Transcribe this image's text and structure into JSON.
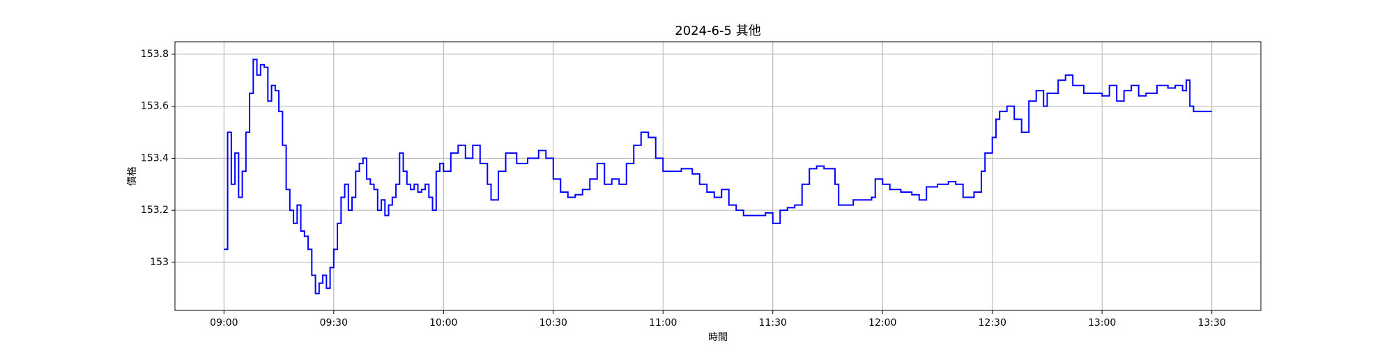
{
  "chart_data": {
    "type": "line",
    "title": "2024-6-5 其他",
    "x_label": "時間",
    "y_label": "價格",
    "x": [
      540,
      541,
      542,
      543,
      544,
      545,
      546,
      547,
      548,
      549,
      550,
      551,
      552,
      553,
      554,
      555,
      556,
      557,
      558,
      559,
      560,
      561,
      562,
      563,
      564,
      565,
      566,
      567,
      568,
      569,
      570,
      571,
      572,
      573,
      574,
      575,
      576,
      577,
      578,
      579,
      580,
      581,
      582,
      583,
      584,
      585,
      586,
      587,
      588,
      589,
      590,
      591,
      592,
      593,
      594,
      595,
      596,
      597,
      598,
      599,
      600,
      602,
      604,
      606,
      608,
      610,
      612,
      613,
      615,
      617,
      620,
      623,
      626,
      628,
      630,
      632,
      634,
      636,
      638,
      640,
      642,
      644,
      646,
      648,
      650,
      652,
      654,
      656,
      658,
      660,
      662,
      665,
      668,
      670,
      672,
      674,
      676,
      678,
      680,
      682,
      685,
      688,
      690,
      692,
      694,
      696,
      698,
      700,
      702,
      704,
      706,
      707,
      708,
      710,
      712,
      715,
      717,
      718,
      720,
      722,
      725,
      728,
      730,
      732,
      735,
      738,
      740,
      742,
      745,
      747,
      748,
      750,
      751,
      752,
      754,
      756,
      758,
      760,
      762,
      764,
      765,
      768,
      770,
      772,
      775,
      778,
      780,
      782,
      784,
      786,
      788,
      790,
      792,
      795,
      798,
      800,
      802,
      803,
      804,
      805,
      808,
      810
    ],
    "series": [
      {
        "name": "價格",
        "color": "#0000ff",
        "values": [
          153.05,
          153.5,
          153.3,
          153.42,
          153.25,
          153.35,
          153.5,
          153.65,
          153.78,
          153.72,
          153.76,
          153.75,
          153.62,
          153.68,
          153.66,
          153.58,
          153.45,
          153.28,
          153.2,
          153.15,
          153.22,
          153.12,
          153.1,
          153.05,
          152.95,
          152.88,
          152.92,
          152.95,
          152.9,
          152.98,
          153.05,
          153.15,
          153.25,
          153.3,
          153.2,
          153.25,
          153.35,
          153.38,
          153.4,
          153.32,
          153.3,
          153.28,
          153.2,
          153.24,
          153.18,
          153.22,
          153.25,
          153.3,
          153.42,
          153.35,
          153.3,
          153.28,
          153.3,
          153.27,
          153.28,
          153.3,
          153.25,
          153.2,
          153.35,
          153.38,
          153.35,
          153.42,
          153.45,
          153.4,
          153.45,
          153.38,
          153.3,
          153.24,
          153.35,
          153.42,
          153.38,
          153.4,
          153.43,
          153.4,
          153.32,
          153.27,
          153.25,
          153.26,
          153.28,
          153.32,
          153.38,
          153.3,
          153.32,
          153.3,
          153.38,
          153.45,
          153.5,
          153.48,
          153.4,
          153.35,
          153.35,
          153.36,
          153.34,
          153.3,
          153.27,
          153.25,
          153.28,
          153.22,
          153.2,
          153.18,
          153.18,
          153.19,
          153.15,
          153.2,
          153.21,
          153.22,
          153.3,
          153.36,
          153.37,
          153.36,
          153.36,
          153.3,
          153.22,
          153.22,
          153.24,
          153.24,
          153.25,
          153.32,
          153.3,
          153.28,
          153.27,
          153.26,
          153.24,
          153.29,
          153.3,
          153.31,
          153.3,
          153.25,
          153.27,
          153.35,
          153.42,
          153.48,
          153.55,
          153.58,
          153.6,
          153.55,
          153.5,
          153.62,
          153.66,
          153.6,
          153.65,
          153.7,
          153.72,
          153.68,
          153.65,
          153.65,
          153.64,
          153.68,
          153.62,
          153.66,
          153.68,
          153.64,
          153.65,
          153.68,
          153.67,
          153.68,
          153.66,
          153.7,
          153.6,
          153.58,
          153.58,
          153.58
        ]
      }
    ],
    "xlim": [
      526.6,
      823.4
    ],
    "xticks": [
      {
        "value": 540,
        "label": "09:00"
      },
      {
        "value": 570,
        "label": "09:30"
      },
      {
        "value": 600,
        "label": "10:00"
      },
      {
        "value": 630,
        "label": "10:30"
      },
      {
        "value": 660,
        "label": "11:00"
      },
      {
        "value": 690,
        "label": "11:30"
      },
      {
        "value": 720,
        "label": "12:00"
      },
      {
        "value": 750,
        "label": "12:30"
      },
      {
        "value": 780,
        "label": "13:00"
      },
      {
        "value": 810,
        "label": "13:30"
      }
    ],
    "ylim": [
      152.815,
      153.848
    ],
    "yticks": [
      153.0,
      153.2,
      153.4,
      153.6,
      153.8
    ],
    "grid": true
  }
}
